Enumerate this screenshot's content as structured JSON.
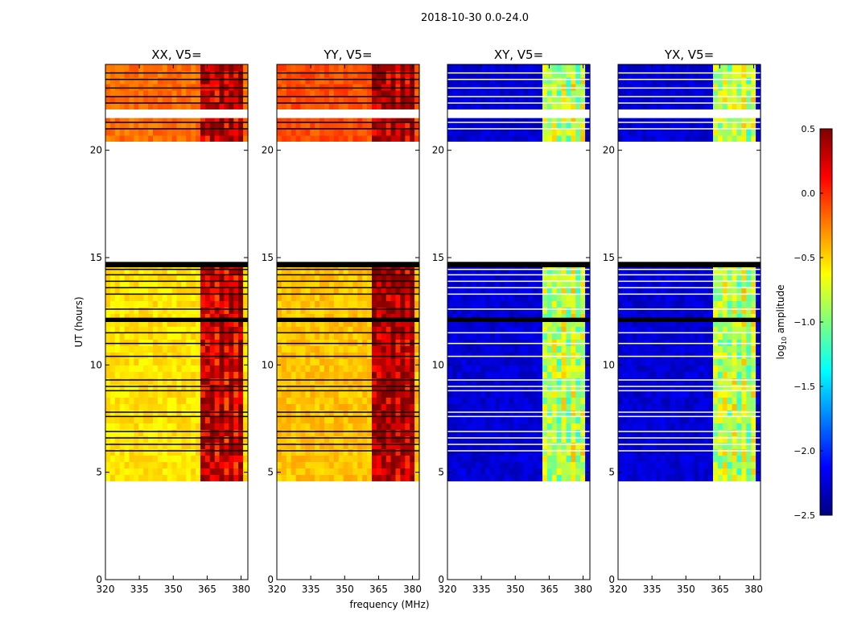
{
  "chart_data": {
    "type": "heatmap",
    "title": "2018-10-30 0.0-24.0",
    "xlabel": "frequency (MHz)",
    "ylabel": "UT (hours)",
    "xlim": [
      320,
      383
    ],
    "ylim": [
      0,
      24
    ],
    "x_ticks": [
      "320",
      "335",
      "350",
      "365",
      "380"
    ],
    "y_ticks": [
      "0",
      "5",
      "10",
      "15",
      "20"
    ],
    "colorbar": {
      "label_main": "log",
      "label_sub": "10",
      "label_rest": " amplitude",
      "range": [
        -2.5,
        0.5
      ],
      "ticks": [
        "0.5",
        "0.0",
        "−0.5",
        "−1.0",
        "−1.5",
        "−2.0",
        "−2.5"
      ]
    },
    "panels": [
      {
        "title": "XX, V5=",
        "base_level": -0.55,
        "band_level": 0.2
      },
      {
        "title": "YY, V5=",
        "base_level": -0.45,
        "band_level": 0.3
      },
      {
        "title": "XY, V5=",
        "base_level": -2.25,
        "band_level": -0.9
      },
      {
        "title": "YX, V5=",
        "base_level": -2.25,
        "band_level": -0.9
      }
    ],
    "data_segments_hours": [
      [
        4.6,
        14.8
      ],
      [
        20.4,
        24.0
      ]
    ],
    "gap_hours": [
      [
        14.8,
        20.4
      ],
      [
        21.5,
        21.9
      ]
    ],
    "band_frequency_mhz": [
      363,
      380
    ],
    "flagged_rows_hours": [
      6.0,
      6.3,
      6.6,
      6.9,
      7.6,
      7.8,
      8.8,
      9.0,
      9.3,
      10.4,
      11.0,
      11.5,
      12.05,
      12.15,
      12.6,
      13.3,
      13.6,
      13.9,
      14.2,
      14.45,
      14.6,
      21.0,
      21.3,
      22.2,
      22.5,
      22.9,
      23.3,
      23.6
    ]
  }
}
